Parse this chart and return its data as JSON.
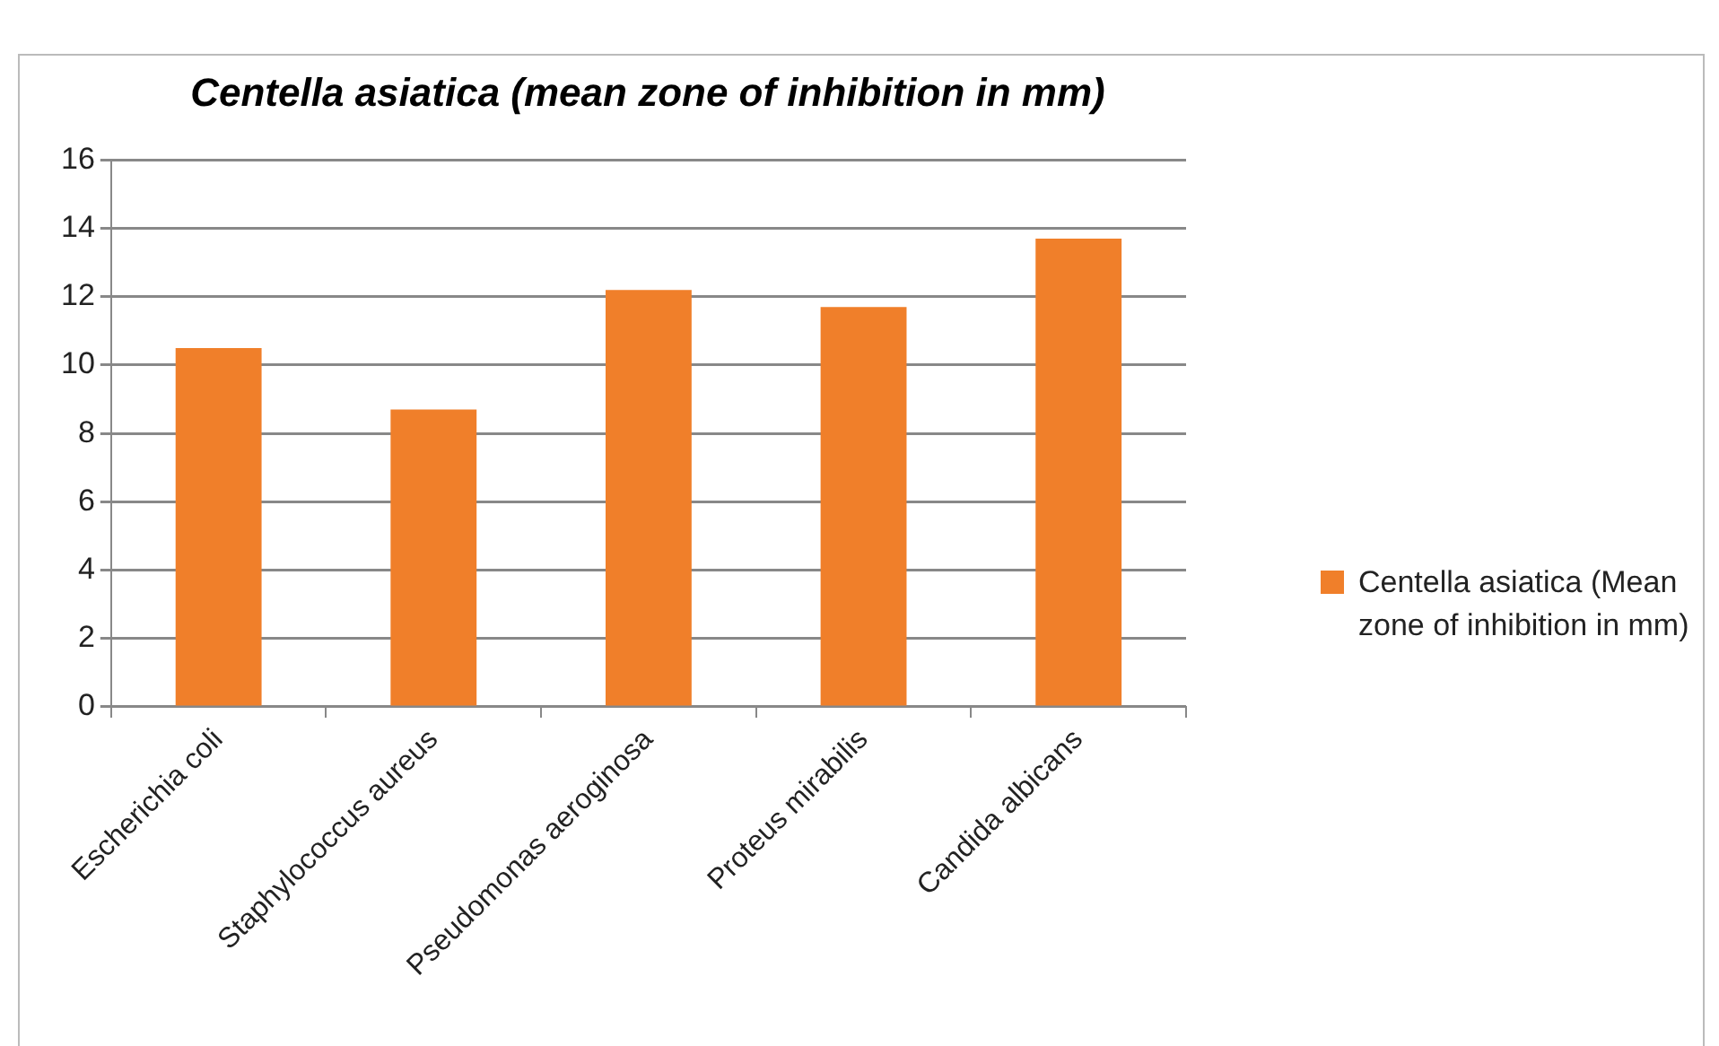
{
  "chart_data": {
    "type": "bar",
    "title": "Centella asiatica  (mean zone of inhibition in mm)",
    "categories": [
      "Escherichia coli",
      "Staphylococcus aureus",
      "Pseudomonas aeroginosa",
      "Proteus mirabilis",
      "Candida albicans"
    ],
    "series": [
      {
        "name": "Centella asiatica  (Mean zone of inhibition in mm)",
        "color": "#f07f2a",
        "values": [
          10.5,
          8.7,
          12.2,
          11.7,
          13.7
        ]
      }
    ],
    "ylim": [
      0,
      16
    ],
    "yticks": [
      0,
      2,
      4,
      6,
      8,
      10,
      12,
      14,
      16
    ],
    "grid": "y",
    "legend": "right"
  }
}
